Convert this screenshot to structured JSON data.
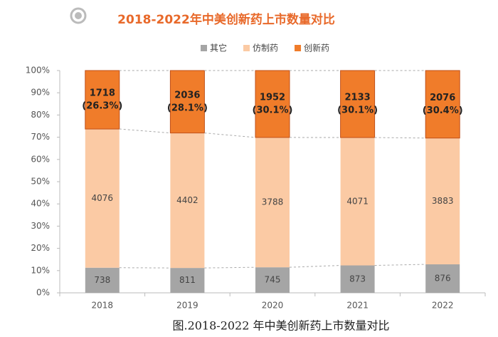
{
  "chart_data": {
    "type": "stacked-bar-percent",
    "title": "2018-2022年中美创新药上市数量对比",
    "caption": "图.2018-2022 年中美创新药上市数量对比",
    "categories": [
      "2018",
      "2019",
      "2020",
      "2021",
      "2022"
    ],
    "series": [
      {
        "name": "其它",
        "color": "#a5a5a5",
        "values": [
          738,
          811,
          745,
          873,
          876
        ]
      },
      {
        "name": "仿制药",
        "color": "#fbcaa4",
        "values": [
          4076,
          4402,
          3788,
          4071,
          3883
        ]
      },
      {
        "name": "创新药",
        "color": "#f07c2a",
        "values": [
          1718,
          2036,
          1952,
          2133,
          2076
        ],
        "share_labels": [
          "(26.3%)",
          "(28.1%)",
          "(30.1%)",
          "(30.1%)",
          "(30.4%)"
        ]
      }
    ],
    "ylim": [
      0,
      100
    ],
    "yticks": [
      {
        "value": 0,
        "label": "0%"
      },
      {
        "value": 10,
        "label": "10%"
      },
      {
        "value": 20,
        "label": "20%"
      },
      {
        "value": 30,
        "label": "30%"
      },
      {
        "value": 40,
        "label": "40%"
      },
      {
        "value": 50,
        "label": "50%"
      },
      {
        "value": 60,
        "label": "60%"
      },
      {
        "value": 70,
        "label": "70%"
      },
      {
        "value": 80,
        "label": "80%"
      },
      {
        "value": 90,
        "label": "90%"
      },
      {
        "value": 100,
        "label": "100%"
      }
    ],
    "legend": "top"
  }
}
